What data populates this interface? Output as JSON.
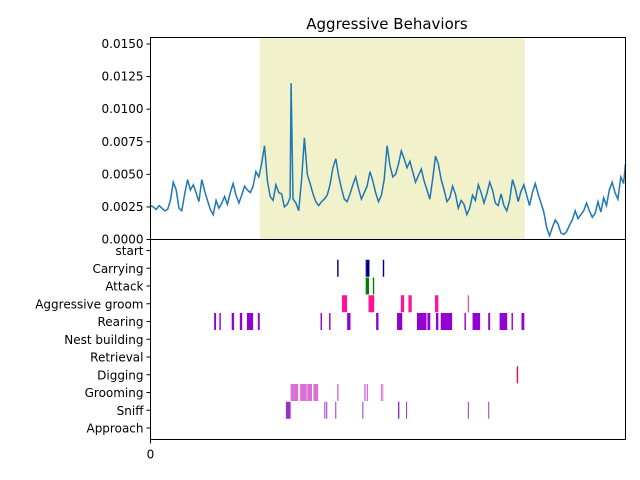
{
  "chart_data": [
    {
      "type": "line",
      "title": "Aggressive Behaviors",
      "xlabel": "",
      "ylabel": "",
      "xlim": [
        0,
        100
      ],
      "ylim": [
        0,
        0.0155
      ],
      "yticks": [
        "0.0000",
        "0.0025",
        "0.0050",
        "0.0075",
        "0.0100",
        "0.0125",
        "0.0150"
      ],
      "yticks_values": [
        0,
        0.0025,
        0.005,
        0.0075,
        0.01,
        0.0125,
        0.015
      ],
      "highlight_span": {
        "x_start": 23.0,
        "x_end": 78.8,
        "color": "#f1f2cc"
      },
      "series": [
        {
          "color": "#1f77b4",
          "points": [
            [
              0,
              0.0026
            ],
            [
              0.6,
              0.0025
            ],
            [
              1.2,
              0.0023
            ],
            [
              1.8,
              0.0026
            ],
            [
              2.4,
              0.0024
            ],
            [
              3,
              0.0022
            ],
            [
              3.6,
              0.0023
            ],
            [
              4.2,
              0.003
            ],
            [
              4.8,
              0.0044
            ],
            [
              5.4,
              0.0038
            ],
            [
              6,
              0.0024
            ],
            [
              6.6,
              0.0022
            ],
            [
              7.2,
              0.0035
            ],
            [
              7.8,
              0.0046
            ],
            [
              8.4,
              0.0038
            ],
            [
              9,
              0.0042
            ],
            [
              9.6,
              0.0036
            ],
            [
              10.2,
              0.0029
            ],
            [
              10.8,
              0.0046
            ],
            [
              11.4,
              0.0037
            ],
            [
              12,
              0.003
            ],
            [
              12.6,
              0.0023
            ],
            [
              13.2,
              0.0019
            ],
            [
              13.8,
              0.003
            ],
            [
              14.4,
              0.0024
            ],
            [
              15,
              0.0028
            ],
            [
              15.6,
              0.0033
            ],
            [
              16.2,
              0.0027
            ],
            [
              16.8,
              0.0036
            ],
            [
              17.4,
              0.0043
            ],
            [
              18,
              0.0034
            ],
            [
              18.6,
              0.0028
            ],
            [
              19.2,
              0.0034
            ],
            [
              19.8,
              0.0041
            ],
            [
              20.4,
              0.0038
            ],
            [
              21,
              0.0036
            ],
            [
              21.6,
              0.0041
            ],
            [
              22.2,
              0.0052
            ],
            [
              22.8,
              0.0048
            ],
            [
              23.4,
              0.0058
            ],
            [
              24,
              0.0072
            ],
            [
              24.6,
              0.0045
            ],
            [
              25.2,
              0.0033
            ],
            [
              25.8,
              0.003
            ],
            [
              26.4,
              0.0042
            ],
            [
              27,
              0.0036
            ],
            [
              27.6,
              0.0035
            ],
            [
              28.2,
              0.0025
            ],
            [
              28.8,
              0.0027
            ],
            [
              29.4,
              0.0032
            ],
            [
              30,
              0.0031
            ],
            [
              30.6,
              0.0028
            ],
            [
              31.2,
              0.0022
            ],
            [
              31.8,
              0.0046
            ],
            [
              32.4,
              0.0078
            ],
            [
              33,
              0.005
            ],
            [
              33.6,
              0.0043
            ],
            [
              34.2,
              0.0035
            ],
            [
              34.8,
              0.0029
            ],
            [
              35.4,
              0.0026
            ],
            [
              36,
              0.0029
            ],
            [
              36.6,
              0.0031
            ],
            [
              37.2,
              0.0034
            ],
            [
              37.8,
              0.0042
            ],
            [
              38.4,
              0.0055
            ],
            [
              39,
              0.0062
            ],
            [
              39.6,
              0.0049
            ],
            [
              40.2,
              0.0039
            ],
            [
              40.8,
              0.0031
            ],
            [
              41.4,
              0.0029
            ],
            [
              42,
              0.0035
            ],
            [
              42.6,
              0.0042
            ],
            [
              43.2,
              0.0048
            ],
            [
              43.8,
              0.0039
            ],
            [
              44.4,
              0.0031
            ],
            [
              45,
              0.0036
            ],
            [
              45.6,
              0.0041
            ],
            [
              46.2,
              0.0052
            ],
            [
              46.8,
              0.0045
            ],
            [
              47.4,
              0.0036
            ],
            [
              48,
              0.0029
            ],
            [
              48.6,
              0.0034
            ],
            [
              49.2,
              0.0046
            ],
            [
              49.8,
              0.0072
            ],
            [
              50.4,
              0.0057
            ],
            [
              51,
              0.0048
            ],
            [
              51.6,
              0.005
            ],
            [
              52.2,
              0.0058
            ],
            [
              52.8,
              0.0068
            ],
            [
              53.4,
              0.0062
            ],
            [
              54,
              0.0055
            ],
            [
              54.6,
              0.006
            ],
            [
              55.2,
              0.0052
            ],
            [
              55.8,
              0.0044
            ],
            [
              56.4,
              0.0049
            ],
            [
              57,
              0.0054
            ],
            [
              57.6,
              0.0045
            ],
            [
              58.2,
              0.0038
            ],
            [
              58.8,
              0.0031
            ],
            [
              59.4,
              0.0046
            ],
            [
              60,
              0.0064
            ],
            [
              60.6,
              0.0058
            ],
            [
              61.2,
              0.0046
            ],
            [
              61.8,
              0.0038
            ],
            [
              62.4,
              0.0029
            ],
            [
              63,
              0.0032
            ],
            [
              63.6,
              0.0041
            ],
            [
              64.2,
              0.0035
            ],
            [
              64.8,
              0.0024
            ],
            [
              65.4,
              0.003
            ],
            [
              66,
              0.0027
            ],
            [
              66.6,
              0.0019
            ],
            [
              67.2,
              0.0024
            ],
            [
              67.8,
              0.0034
            ],
            [
              68.4,
              0.003
            ],
            [
              69,
              0.0042
            ],
            [
              69.6,
              0.0036
            ],
            [
              70.2,
              0.0028
            ],
            [
              70.8,
              0.0035
            ],
            [
              71.4,
              0.0044
            ],
            [
              72,
              0.0038
            ],
            [
              72.6,
              0.0028
            ],
            [
              73.2,
              0.0026
            ],
            [
              73.8,
              0.0035
            ],
            [
              74.4,
              0.0026
            ],
            [
              75,
              0.0022
            ],
            [
              75.6,
              0.003
            ],
            [
              76.2,
              0.0046
            ],
            [
              76.8,
              0.0039
            ],
            [
              77.4,
              0.0029
            ],
            [
              78,
              0.0037
            ],
            [
              78.6,
              0.0042
            ],
            [
              79.2,
              0.0034
            ],
            [
              79.8,
              0.0026
            ],
            [
              80.4,
              0.0036
            ],
            [
              81,
              0.0043
            ],
            [
              81.6,
              0.0035
            ],
            [
              82.2,
              0.0028
            ],
            [
              82.8,
              0.0021
            ],
            [
              83.4,
              0.0009
            ],
            [
              84,
              0.0003
            ],
            [
              84.6,
              0.0009
            ],
            [
              85.2,
              0.0015
            ],
            [
              85.8,
              0.0012
            ],
            [
              86.4,
              0.0005
            ],
            [
              87,
              0.0004
            ],
            [
              87.6,
              0.0006
            ],
            [
              88.2,
              0.0011
            ],
            [
              88.8,
              0.0015
            ],
            [
              89.4,
              0.0022
            ],
            [
              90,
              0.0016
            ],
            [
              90.6,
              0.0019
            ],
            [
              91.2,
              0.0022
            ],
            [
              91.8,
              0.0028
            ],
            [
              92.4,
              0.0022
            ],
            [
              93,
              0.0017
            ],
            [
              93.6,
              0.002
            ],
            [
              94.2,
              0.0029
            ],
            [
              94.8,
              0.0021
            ],
            [
              95.4,
              0.0032
            ],
            [
              96,
              0.0026
            ],
            [
              96.6,
              0.0038
            ],
            [
              97.2,
              0.0044
            ],
            [
              97.8,
              0.0036
            ],
            [
              98.4,
              0.0031
            ],
            [
              99,
              0.0048
            ],
            [
              99.6,
              0.0043
            ],
            [
              100,
              0.0058
            ]
          ]
        }
      ],
      "peaks_note_hidden": null
    },
    {
      "type": "event_raster",
      "xlim": [
        0,
        100
      ],
      "xticks": [
        "0"
      ],
      "xticks_values": [
        0
      ],
      "rows": [
        {
          "label": "start",
          "color": "#000000",
          "events": []
        },
        {
          "label": "Carrying",
          "color": "#000080",
          "events": [
            [
              39.3,
              39.6
            ],
            [
              45.3,
              45.5
            ],
            [
              45.5,
              46.1
            ],
            [
              48.9,
              49.2
            ]
          ]
        },
        {
          "label": "Attack",
          "color": "#008000",
          "events": [
            [
              45.3,
              46.0
            ],
            [
              46.8,
              47.1
            ]
          ]
        },
        {
          "label": "Aggressive groom",
          "color": "#ff1493",
          "events": [
            [
              40.3,
              41.4
            ],
            [
              45.9,
              47.1
            ],
            [
              52.7,
              53.4
            ],
            [
              54.3,
              55.0
            ],
            [
              59.9,
              60.6
            ],
            [
              66.8,
              67.0
            ]
          ]
        },
        {
          "label": "Rearing",
          "color": "#9400d3",
          "events": [
            [
              13.4,
              13.8
            ],
            [
              14.5,
              14.8
            ],
            [
              17.1,
              17.6
            ],
            [
              18.8,
              19.3
            ],
            [
              20.3,
              21.6
            ],
            [
              22.6,
              23.0
            ],
            [
              35.8,
              36.1
            ],
            [
              37.6,
              37.9
            ],
            [
              41.4,
              42.1
            ],
            [
              47.5,
              48.0
            ],
            [
              51.9,
              53.0
            ],
            [
              56.1,
              58.1
            ],
            [
              58.3,
              58.9
            ],
            [
              60.1,
              60.6
            ],
            [
              61.1,
              63.5
            ],
            [
              66.1,
              66.4
            ],
            [
              67.8,
              69.4
            ],
            [
              71.1,
              71.5
            ],
            [
              73.5,
              75.1
            ],
            [
              76.0,
              76.3
            ],
            [
              78.1,
              78.7
            ]
          ]
        },
        {
          "label": "Nest building",
          "color": "#9400d3",
          "events": []
        },
        {
          "label": "Retrieval",
          "color": "#9400d3",
          "events": []
        },
        {
          "label": "Digging",
          "color": "#dc143c",
          "events": [
            [
              77.1,
              77.4
            ]
          ]
        },
        {
          "label": "Grooming",
          "color": "#da70d6",
          "events": [
            [
              29.5,
              31.1
            ],
            [
              31.5,
              32.9
            ],
            [
              33.0,
              34.0
            ],
            [
              34.3,
              35.3
            ],
            [
              39.3,
              39.6
            ],
            [
              45.0,
              45.3
            ],
            [
              45.5,
              45.8
            ],
            [
              48.5,
              48.7
            ],
            [
              48.8,
              49.0
            ]
          ]
        },
        {
          "label": "Sniff",
          "color": "#9932cc",
          "events": [
            [
              28.5,
              29.5
            ],
            [
              36.6,
              36.8
            ],
            [
              37.0,
              37.2
            ],
            [
              38.9,
              39.1
            ],
            [
              44.6,
              44.8
            ],
            [
              52.1,
              52.4
            ],
            [
              53.8,
              54.0
            ],
            [
              66.8,
              67.0
            ],
            [
              71.1,
              71.3
            ]
          ]
        },
        {
          "label": "Approach",
          "color": "#9400d3",
          "events": []
        }
      ]
    }
  ]
}
